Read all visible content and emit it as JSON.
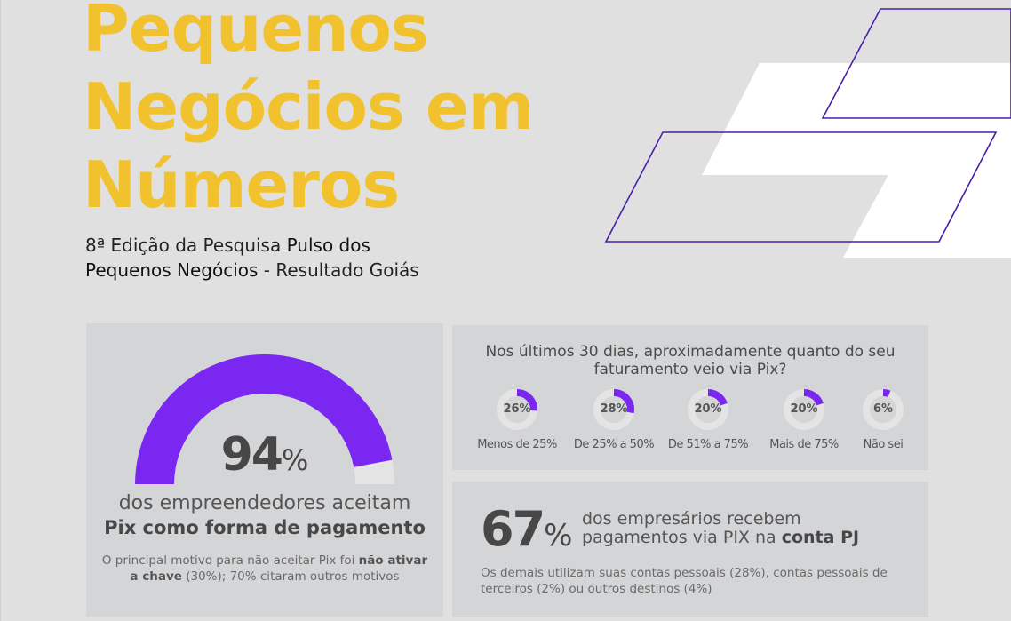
{
  "header": {
    "title_lines": [
      "Pequenos",
      "Negócios em",
      "Números"
    ],
    "subtitle": {
      "prefix": "8ª Edição da Pesquisa ",
      "bold1": "Pulso dos",
      "bold2": "Pequenos Negócios",
      "suffix": " - Resultado Goiás"
    }
  },
  "colors": {
    "title_yellow": "#f2c12e",
    "accent_purple": "#7b27f2",
    "outline_purple": "#4b1fa8",
    "card_bg": "#d4d5d7",
    "page_bg": "#e0e0e0",
    "track": "#e4e4e4"
  },
  "acceptance_card": {
    "value": 94,
    "value_text": "94",
    "percent_sign": "%",
    "line1": "dos empreendedores aceitam",
    "line2": "Pix como forma de pagamento",
    "reason_prefix": "O principal motivo para não aceitar Pix foi ",
    "reason_bold": "não ativar a chave",
    "reason_suffix": " (30%); 70% citaram outros motivos"
  },
  "revenue_card": {
    "question": "Nos últimos 30 dias, aproximadamente quanto do seu faturamento veio via Pix?",
    "items": [
      {
        "value": 26,
        "value_text": "26%",
        "label": "Menos de 25%"
      },
      {
        "value": 28,
        "value_text": "28%",
        "label": "De 25% a 50%"
      },
      {
        "value": 20,
        "value_text": "20%",
        "label": "De 51% a 75%"
      },
      {
        "value": 20,
        "value_text": "20%",
        "label": "Mais de 75%"
      },
      {
        "value": 6,
        "value_text": "6%",
        "label": "Não sei"
      }
    ]
  },
  "pj_card": {
    "value_text": "67",
    "percent_sign": "%",
    "line1": "dos empresários recebem",
    "line2_prefix": "pagamentos via PIX na ",
    "line2_bold": "conta PJ",
    "others": "Os demais utilizam suas contas pessoais (28%), contas pessoais de terceiros (2%) ou outros destinos (4%)"
  }
}
